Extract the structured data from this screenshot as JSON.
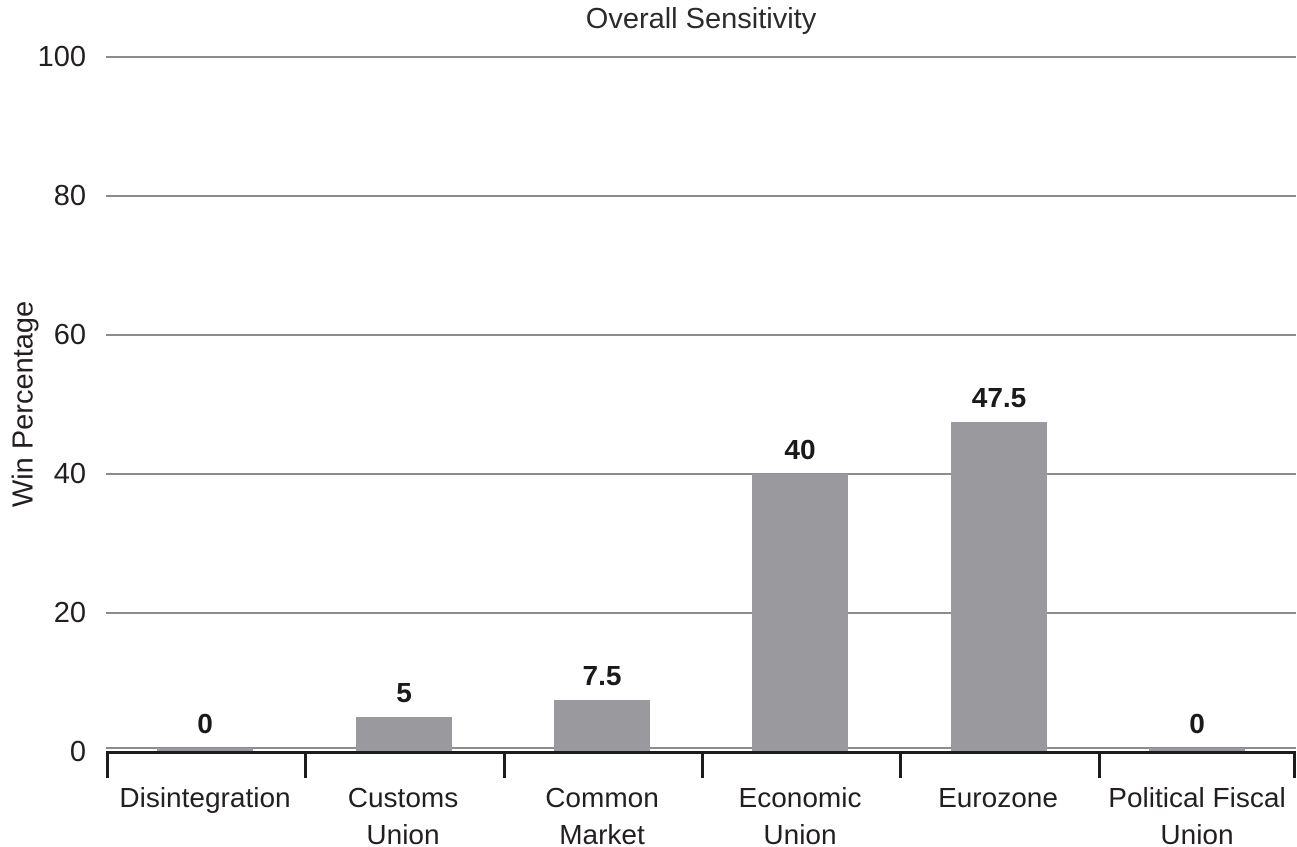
{
  "chart_data": {
    "type": "bar",
    "title": "Overall Sensitivity",
    "xlabel": "",
    "ylabel": "Win Percentage",
    "categories": [
      "Disintegration",
      "Customs Union",
      "Common Market",
      "Economic Union",
      "Eurozone",
      "Political Fiscal Union"
    ],
    "category_label_lines": [
      [
        "Disintegration"
      ],
      [
        "Customs",
        "Union"
      ],
      [
        "Common",
        "Market"
      ],
      [
        "Economic",
        "Union"
      ],
      [
        "Eurozone"
      ],
      [
        "Political Fiscal",
        "Union"
      ]
    ],
    "values": [
      0,
      5,
      7.5,
      40,
      47.5,
      0
    ],
    "value_labels": [
      "0",
      "5",
      "7.5",
      "40",
      "47.5",
      "0"
    ],
    "yticks": [
      0,
      20,
      40,
      60,
      80,
      100
    ],
    "ylim": [
      0,
      100
    ],
    "grid": "horizontal",
    "legend": "none",
    "bar_color": "#9a9a9e",
    "gridline_color": "#8b8c8f",
    "axis_color": "#1c1c1e",
    "text_color": "#231f20"
  }
}
